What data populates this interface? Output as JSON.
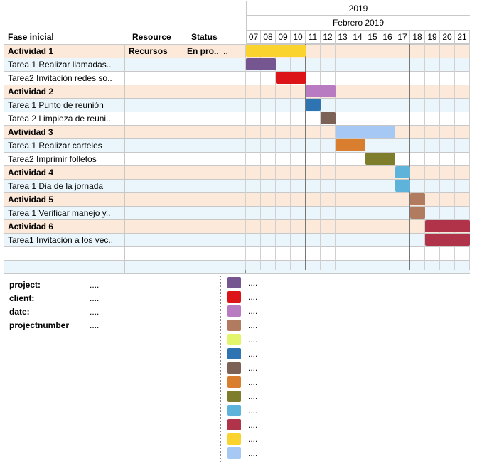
{
  "header": {
    "year": "2019",
    "month": "Febrero 2019",
    "col_phase": "Fase inicial",
    "col_resource": "Resource",
    "col_status": "Status",
    "days": [
      "07",
      "08",
      "09",
      "10",
      "11",
      "12",
      "13",
      "14",
      "15",
      "16",
      "17",
      "18",
      "19",
      "20",
      "21"
    ]
  },
  "rows": [
    {
      "kind": "act",
      "name": "Actividad 1",
      "resource": "Recursos",
      "status": "En pro..",
      "extra": "..",
      "bar": {
        "start": 0,
        "span": 4,
        "color": "#fbd32f"
      }
    },
    {
      "kind": "task",
      "name": "Tarea 1 Realizar llamadas..",
      "resource": "",
      "status": "",
      "bar": {
        "start": 0,
        "span": 2,
        "color": "#765690"
      }
    },
    {
      "kind": "plain",
      "name": "Tarea2 Invitación redes so..",
      "resource": "",
      "status": "",
      "bar": {
        "start": 2,
        "span": 2,
        "color": "#dc1417"
      }
    },
    {
      "kind": "act",
      "name": "Actividad 2",
      "resource": "",
      "status": "",
      "bar": {
        "start": 4,
        "span": 2,
        "color": "#b87bc1"
      }
    },
    {
      "kind": "task",
      "name": "Tarea  1 Punto de reunión",
      "resource": "",
      "status": "",
      "bar": {
        "start": 4,
        "span": 1,
        "color": "#2e74b2"
      }
    },
    {
      "kind": "plain",
      "name": "Tarea 2 Limpieza de reuni..",
      "resource": "",
      "status": "",
      "bar": {
        "start": 5,
        "span": 1,
        "color": "#7c6256"
      }
    },
    {
      "kind": "act",
      "name": "Avtividad 3",
      "resource": "",
      "status": "",
      "bar": {
        "start": 6,
        "span": 4,
        "color": "#a6c8f4"
      }
    },
    {
      "kind": "task",
      "name": "Tarea 1 Realizar carteles",
      "resource": "",
      "status": "",
      "bar": {
        "start": 6,
        "span": 2,
        "color": "#d97d2e"
      }
    },
    {
      "kind": "plain",
      "name": "Tarea2 Imprimir folletos",
      "resource": "",
      "status": "",
      "bar": {
        "start": 8,
        "span": 2,
        "color": "#7e7d2b"
      }
    },
    {
      "kind": "act",
      "name": "Actividad 4",
      "resource": "",
      "status": "",
      "bar": {
        "start": 10,
        "span": 1,
        "color": "#5db3d9"
      }
    },
    {
      "kind": "task",
      "name": "Tarea 1 Dia de la jornada",
      "resource": "",
      "status": "",
      "bar": {
        "start": 10,
        "span": 1,
        "color": "#5db3d9"
      }
    },
    {
      "kind": "act",
      "name": "Actividad 5",
      "resource": "",
      "status": "",
      "bar": {
        "start": 11,
        "span": 1,
        "color": "#b07b5e"
      }
    },
    {
      "kind": "task",
      "name": "Tarea 1 Verificar manejo y..",
      "resource": "",
      "status": "",
      "bar": {
        "start": 11,
        "span": 1,
        "color": "#b07b5e"
      }
    },
    {
      "kind": "act",
      "name": "Actividad 6",
      "resource": "",
      "status": "",
      "bar": {
        "start": 12,
        "span": 3,
        "color": "#b0334a"
      }
    },
    {
      "kind": "task",
      "name": "Tarea1 Invitación a los vec..",
      "resource": "",
      "status": "",
      "bar": {
        "start": 12,
        "span": 3,
        "color": "#b0334a"
      }
    },
    {
      "kind": "plain",
      "name": "",
      "resource": "",
      "status": ""
    },
    {
      "kind": "blank",
      "name": "",
      "resource": "",
      "status": ""
    }
  ],
  "info": {
    "project_label": "project:",
    "project_value": "....",
    "client_label": "client:",
    "client_value": "....",
    "date_label": "date:",
    "date_value": "....",
    "number_label": "projectnumber",
    "number_value": "...."
  },
  "legend": [
    {
      "color": "#765690",
      "text": "...."
    },
    {
      "color": "#dc1417",
      "text": "...."
    },
    {
      "color": "#b87bc1",
      "text": "...."
    },
    {
      "color": "#b07b5e",
      "text": "...."
    },
    {
      "color": "#e3f56a",
      "text": "...."
    },
    {
      "color": "#2e74b2",
      "text": "...."
    },
    {
      "color": "#7c6256",
      "text": "...."
    },
    {
      "color": "#d97d2e",
      "text": "...."
    },
    {
      "color": "#7e7d2b",
      "text": "...."
    },
    {
      "color": "#5db3d9",
      "text": "...."
    },
    {
      "color": "#b0334a",
      "text": "...."
    },
    {
      "color": "#fbd32f",
      "text": "...."
    },
    {
      "color": "#a6c8f4",
      "text": "...."
    }
  ]
}
